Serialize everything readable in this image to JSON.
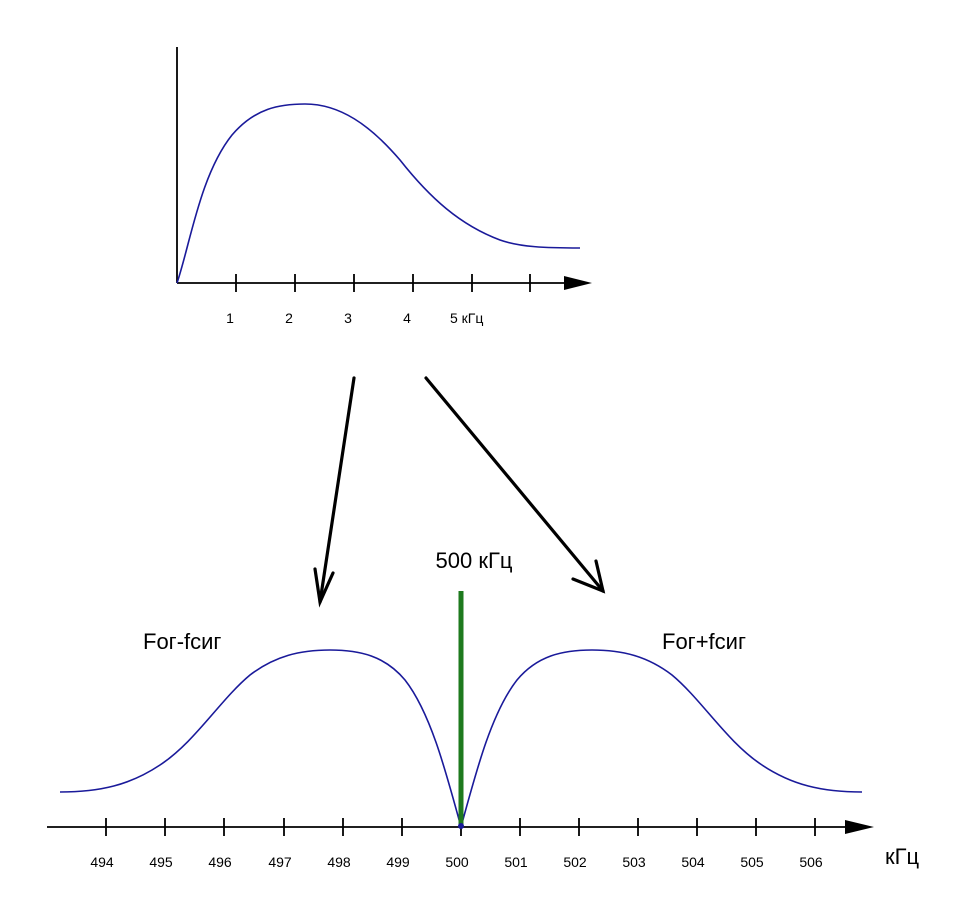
{
  "colors": {
    "axis": "#000000",
    "curve": "#1a1a9a",
    "carrier": "#1e7a1e",
    "arrow": "#000000"
  },
  "top_spectrum": {
    "tick_labels": [
      "1",
      "2",
      "3",
      "4",
      "5 кГц"
    ],
    "curve_shape": "rise-to-plateau-then-decay"
  },
  "mapping_arrows": [
    {
      "from": "top_spectrum",
      "to": "lower_sideband"
    },
    {
      "from": "top_spectrum",
      "to": "upper_sideband"
    }
  ],
  "bottom_spectrum": {
    "carrier_label": "500 кГц",
    "lower_sideband_label": "Fог-fсиг",
    "upper_sideband_label": "Fог+fсиг",
    "tick_labels": [
      "494",
      "495",
      "496",
      "497",
      "498",
      "499",
      "500",
      "501",
      "502",
      "503",
      "504",
      "505",
      "506"
    ],
    "unit_label": "кГц"
  }
}
